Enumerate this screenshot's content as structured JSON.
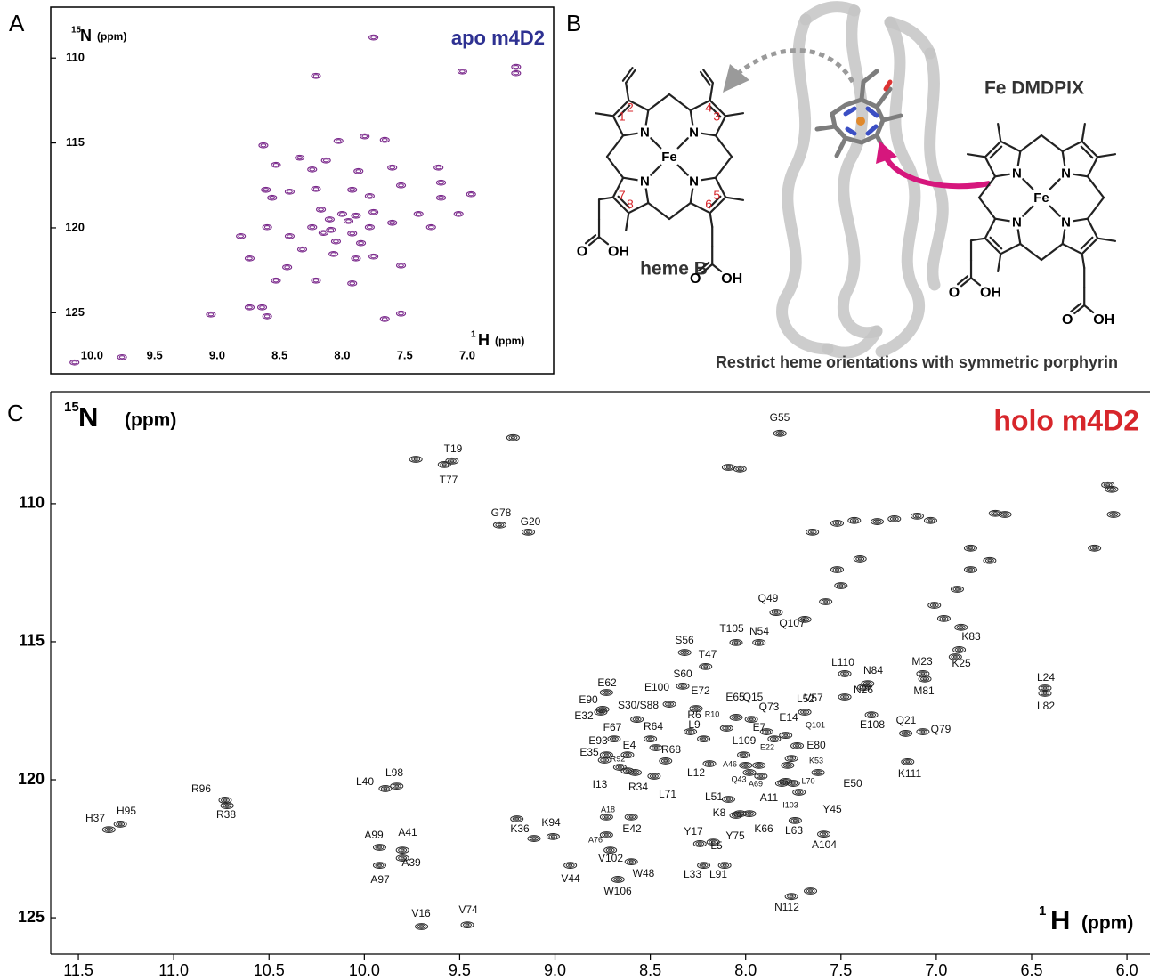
{
  "panel_labels": [
    "A",
    "B",
    "C"
  ],
  "chart_data": [
    {
      "type": "nmr",
      "title": "apo m4D2",
      "title_color": "#2e3192",
      "color": "#7b2a8c",
      "x_label": {
        "sup": "1",
        "main": "H",
        "unit": "(ppm)"
      },
      "y_label": {
        "sup": "15",
        "main": "N",
        "unit": "(ppm)"
      },
      "xlim": [
        10.33,
        6.31
      ],
      "ylim": [
        107.0,
        128.6
      ],
      "xticks": [
        {
          "value": 10,
          "label": "10.0"
        },
        9.5,
        {
          "value": 9,
          "label": "9.0"
        },
        8.5,
        {
          "value": 8,
          "label": "8.0"
        },
        7.5,
        {
          "value": 7,
          "label": "7.0"
        }
      ],
      "yticks": [
        110,
        115,
        120,
        125
      ],
      "x": [
        7.75,
        7.04,
        6.61,
        6.61,
        8.21,
        8.63,
        8.03,
        7.82,
        7.66,
        8.34,
        8.13,
        8.53,
        7.23,
        7.6,
        7.87,
        8.24,
        8.61,
        8.56,
        8.42,
        8.21,
        7.92,
        7.78,
        7.53,
        7.21,
        7.21,
        6.97,
        8.17,
        8.0,
        7.89,
        7.75,
        8.24,
        8.09,
        7.92,
        7.78,
        7.6,
        7.39,
        7.29,
        7.07,
        8.6,
        8.42,
        8.32,
        8.07,
        7.89,
        7.75,
        7.53,
        8.44,
        8.21,
        7.92,
        8.81,
        8.74,
        8.53,
        9.05,
        8.74,
        8.64,
        8.6,
        7.66,
        7.53,
        10.14,
        9.76,
        8.1,
        7.95,
        8.05,
        7.85,
        8.15
      ],
      "values": [
        108.79,
        110.79,
        110.89,
        110.52,
        111.05,
        115.14,
        114.88,
        114.61,
        114.82,
        115.87,
        116.03,
        116.29,
        116.45,
        116.45,
        116.66,
        116.56,
        117.76,
        118.23,
        117.87,
        117.71,
        117.76,
        118.13,
        117.5,
        117.34,
        118.23,
        118.02,
        118.92,
        119.18,
        119.28,
        119.07,
        119.96,
        120.12,
        120.33,
        119.96,
        119.7,
        119.18,
        119.96,
        119.18,
        119.96,
        120.49,
        121.27,
        121.54,
        121.8,
        121.69,
        122.22,
        122.32,
        123.11,
        123.27,
        120.49,
        121.8,
        123.11,
        125.1,
        124.68,
        124.68,
        125.21,
        125.37,
        125.05,
        127.93,
        127.62,
        119.5,
        119.6,
        120.8,
        120.9,
        120.3
      ]
    },
    {
      "type": "nmr",
      "title": "holo m4D2",
      "title_color": "#d7262b",
      "color": "#2b2b2b",
      "x_label": {
        "sup": "1",
        "main": "H",
        "unit": "(ppm)"
      },
      "y_label": {
        "sup": "15",
        "main": "N",
        "unit": "(ppm)"
      },
      "xlim": [
        11.645,
        5.879
      ],
      "ylim": [
        105.94,
        126.32
      ],
      "xticks": [
        11.5,
        {
          "value": 11,
          "label": "11.0"
        },
        10.5,
        {
          "value": 10,
          "label": "10.0"
        },
        9.5,
        {
          "value": 9,
          "label": "9.0"
        },
        8.5,
        {
          "value": 8,
          "label": "8.0"
        },
        7.5,
        {
          "value": 7,
          "label": "7.0"
        },
        6.5,
        {
          "value": 6,
          "label": "6.0"
        }
      ],
      "yticks": [
        110,
        115,
        120,
        125
      ],
      "x": [
        7.82,
        9.54,
        9.58,
        9.29,
        9.14,
        7.84,
        7.69,
        8.05,
        7.93,
        8.32,
        8.21,
        8.33,
        8.73,
        8.4,
        8.26,
        8.75,
        8.76,
        8.57,
        8.05,
        7.97,
        7.89,
        8.1,
        8.29,
        7.69,
        7.85,
        7.79,
        7.73,
        8.22,
        8.01,
        8.69,
        8.5,
        8.73,
        8.62,
        8.74,
        7.76,
        8.66,
        8.42,
        7.93,
        8.0,
        7.78,
        8.19,
        7.98,
        7.92,
        8.62,
        8.58,
        8.48,
        7.79,
        7.62,
        7.81,
        7.75,
        7.72,
        8.09,
        8.03,
        8.05,
        7.98,
        8.24,
        8.17,
        7.74,
        7.59,
        8.22,
        8.11,
        7.76,
        8.73,
        8.6,
        8.73,
        8.71,
        8.6,
        8.67,
        8.92,
        9.11,
        9.01,
        7.48,
        7.48,
        7.36,
        7.38,
        7.34,
        7.07,
        7.06,
        6.88,
        6.9,
        6.43,
        6.43,
        7.16,
        7.07,
        7.15,
        9.89,
        9.83,
        10.73,
        10.72,
        11.34,
        11.28,
        9.92,
        9.8,
        9.92,
        9.8,
        9.7,
        9.46,
        9.73,
        9.22,
        8.09,
        8.03,
        6.1,
        6.08,
        6.07,
        7.65,
        7.52,
        7.43,
        7.31,
        7.22,
        7.1,
        7.03,
        6.69,
        6.64,
        7.52,
        7.4,
        7.5,
        6.82,
        6.82,
        7.01,
        6.96,
        6.87,
        6.89,
        7.58,
        6.72,
        8.47,
        7.66,
        9.2,
        6.17
      ],
      "values": [
        107.45,
        108.45,
        108.58,
        110.77,
        111.03,
        113.94,
        114.19,
        115.03,
        115.03,
        115.39,
        115.9,
        116.61,
        116.84,
        117.26,
        117.42,
        117.45,
        117.55,
        117.81,
        117.74,
        117.81,
        118.26,
        118.13,
        118.26,
        117.55,
        118.52,
        118.39,
        118.77,
        118.52,
        119.1,
        118.52,
        118.52,
        119.1,
        119.1,
        119.29,
        119.23,
        119.55,
        119.32,
        119.48,
        119.48,
        119.48,
        119.42,
        119.74,
        119.87,
        119.68,
        119.74,
        119.87,
        120.06,
        119.74,
        120.13,
        120.13,
        120.45,
        120.71,
        121.23,
        121.29,
        121.23,
        122.32,
        122.26,
        121.48,
        121.97,
        123.1,
        123.1,
        124.23,
        121.35,
        121.35,
        122.0,
        122.55,
        122.97,
        123.61,
        123.1,
        122.13,
        122.06,
        117.0,
        116.16,
        116.52,
        116.65,
        117.65,
        116.16,
        116.35,
        115.29,
        115.55,
        116.68,
        116.87,
        118.32,
        118.26,
        119.35,
        120.32,
        120.23,
        120.74,
        120.94,
        121.81,
        121.61,
        122.45,
        122.55,
        123.1,
        122.84,
        125.32,
        125.26,
        108.39,
        107.61,
        108.68,
        108.74,
        109.32,
        109.48,
        110.39,
        111.03,
        110.71,
        110.61,
        110.65,
        110.55,
        110.45,
        110.61,
        110.35,
        110.39,
        112.39,
        112.0,
        112.97,
        111.61,
        112.39,
        113.68,
        114.16,
        114.48,
        113.1,
        113.55,
        112.06,
        118.84,
        124.03,
        121.42,
        111.61
      ],
      "point_labels": [
        "G55",
        "T19",
        "T77",
        "G78",
        "G20",
        "Q49",
        "Q107",
        "T105",
        "N54",
        "S56",
        "T47",
        "S60",
        "E62",
        "E100",
        "E72",
        "E90",
        "E32",
        "S30/S88",
        "E65",
        "Q15",
        "Q73",
        "R10",
        "R6",
        "L52",
        "E7",
        "E14",
        "Q101",
        "L9",
        "L109",
        "F67",
        "R64",
        "E93",
        "E4",
        "E35",
        "E80",
        "R92",
        "R68",
        "E22",
        "A46",
        "K53",
        "L12",
        "Q43",
        "A69",
        "I13",
        "R34",
        "L71",
        "L70",
        "E50",
        "A11",
        "I103",
        "Y45",
        "L51",
        "K8",
        "Y75",
        "K66",
        "Y17",
        "L5",
        "L63",
        "A104",
        "L33",
        "L91",
        "N112",
        "A18",
        "E42",
        "A76",
        "V102",
        "W48",
        "W106",
        "V44",
        "K36",
        "K94",
        "V57",
        "L110",
        "N84",
        "N26",
        "E108",
        "M23",
        "M81",
        "K83",
        "K25",
        "L24",
        "L82",
        "Q21",
        "Q79",
        "K111",
        "L40",
        "L98",
        "R96",
        "R38",
        "H37",
        "H95",
        "A99",
        "A41",
        "A97",
        "A39",
        "V16",
        "V74",
        null,
        null,
        null,
        null,
        null,
        null,
        null,
        null,
        null,
        null,
        null,
        null,
        null,
        null,
        null,
        null,
        null,
        null,
        null,
        null,
        null,
        null,
        null,
        null,
        null,
        null,
        null,
        null,
        null,
        null,
        null
      ]
    }
  ],
  "diagram": {
    "heme_label": "heme B",
    "analog_label": "Fe DMDPIX",
    "caption": "Restrict heme orientations with symmetric porphyrin",
    "atoms": {
      "N": "N",
      "Fe": "Fe",
      "O": "O",
      "OH": "OH"
    },
    "positions": [
      "1",
      "2",
      "3",
      "4",
      "5",
      "6",
      "7",
      "8"
    ]
  }
}
